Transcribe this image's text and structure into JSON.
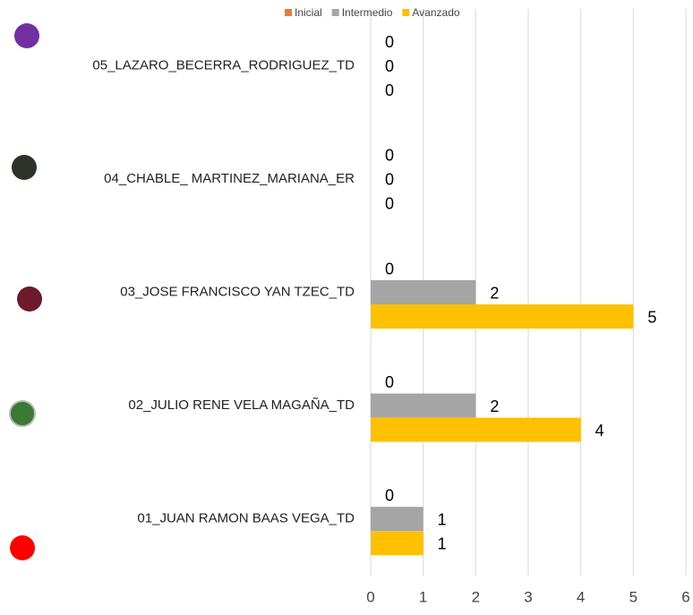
{
  "chart_data": {
    "type": "bar",
    "orientation": "horizontal",
    "categories": [
      "01_JUAN RAMON BAAS VEGA_TD",
      "02_JULIO RENE VELA MAGAÑA_TD",
      "03_JOSE FRANCISCO YAN TZEC_TD",
      "04_CHABLE_ MARTINEZ_MARIANA_ER",
      "05_LAZARO_BECERRA_RODRIGUEZ_TD"
    ],
    "series": [
      {
        "name": "Inicial",
        "color": "#ed7d31",
        "values": [
          0,
          0,
          0,
          0,
          0
        ]
      },
      {
        "name": "Intermedio",
        "color": "#a5a5a5",
        "values": [
          1,
          2,
          2,
          0,
          0
        ]
      },
      {
        "name": "Avanzado",
        "color": "#ffc000",
        "values": [
          1,
          4,
          5,
          0,
          0
        ]
      }
    ],
    "xlim": [
      0,
      6
    ],
    "xticks": [
      0,
      1,
      2,
      3,
      4,
      5,
      6
    ],
    "grid": true,
    "legend": "top"
  }
}
